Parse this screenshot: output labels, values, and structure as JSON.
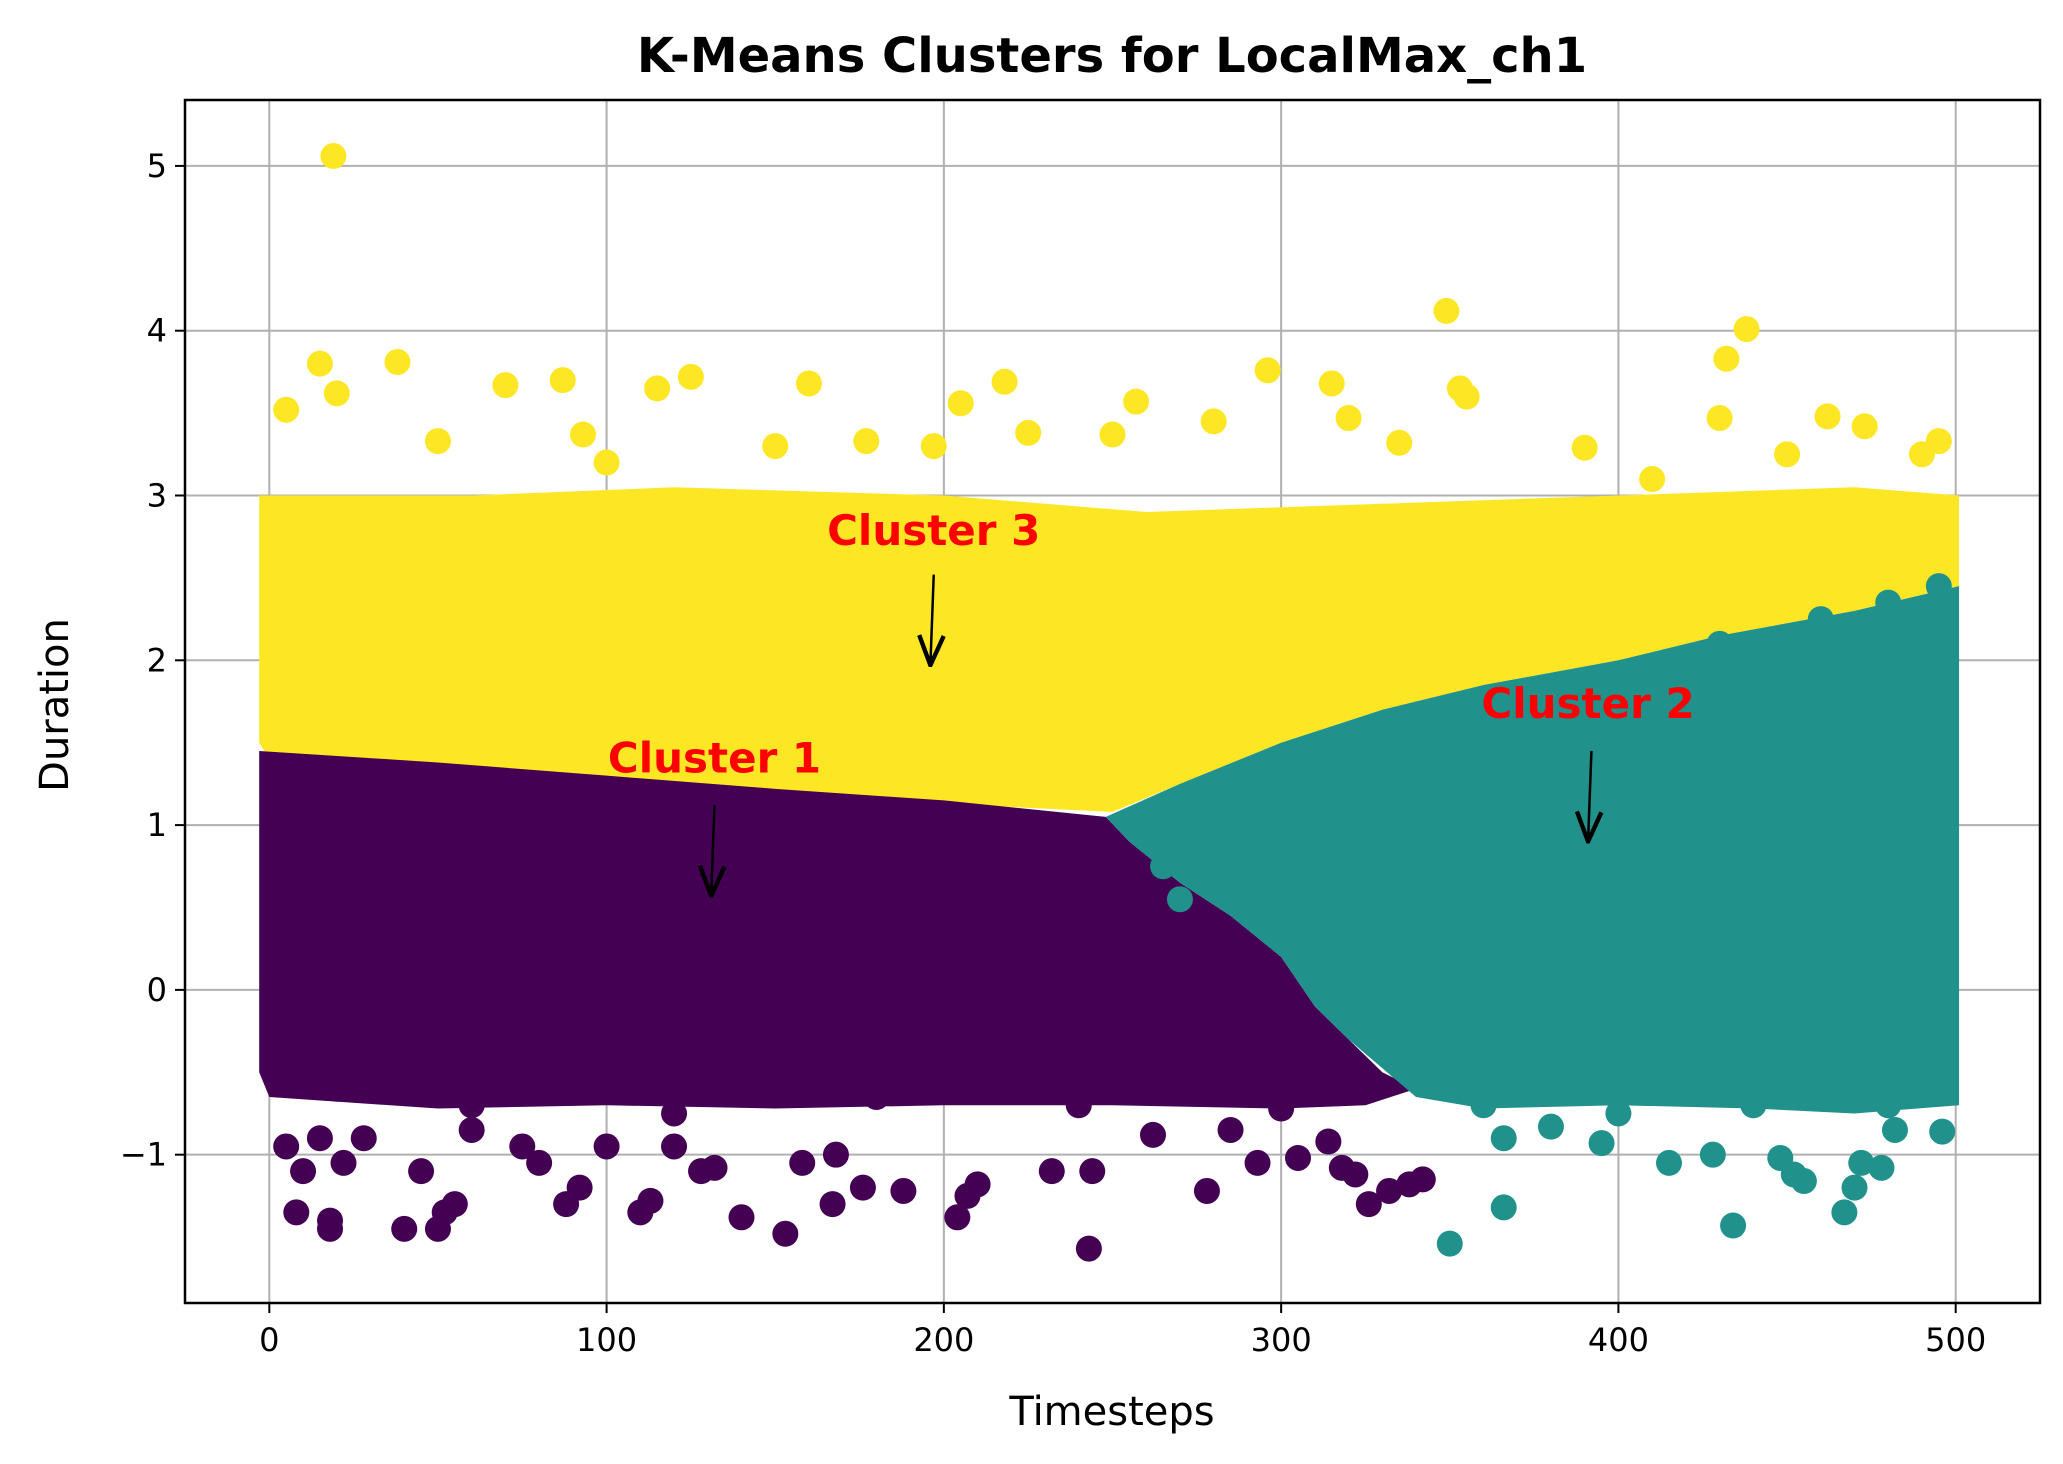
{
  "chart_data": {
    "type": "scatter",
    "title": "K-Means Clusters for LocalMax_ch1",
    "xlabel": "Timesteps",
    "ylabel": "Duration",
    "xlim": [
      -25,
      525
    ],
    "ylim": [
      -1.9,
      5.4
    ],
    "xticks": [
      0,
      100,
      200,
      300,
      400,
      500
    ],
    "xtick_labels": [
      "0",
      "100",
      "200",
      "300",
      "400",
      "500"
    ],
    "yticks": [
      -1,
      0,
      1,
      2,
      3,
      4,
      5
    ],
    "ytick_labels": [
      "−1",
      "0",
      "1",
      "2",
      "3",
      "4",
      "5"
    ],
    "grid": true,
    "colors": {
      "cluster_1": "#440154",
      "cluster_2": "#21918c",
      "cluster_3": "#fde725",
      "annotation": "#ff0000"
    },
    "series": [
      {
        "cluster": 1,
        "color": "#440154",
        "points": [
          [
            5,
            -0.95
          ],
          [
            8,
            -1.35
          ],
          [
            10,
            -1.1
          ],
          [
            15,
            -0.9
          ],
          [
            18,
            -1.45
          ],
          [
            18,
            -1.4
          ],
          [
            22,
            -1.05
          ],
          [
            28,
            -0.9
          ],
          [
            40,
            -1.45
          ],
          [
            45,
            -1.1
          ],
          [
            50,
            -1.45
          ],
          [
            52,
            -1.35
          ],
          [
            55,
            -1.3
          ],
          [
            60,
            -0.85
          ],
          [
            75,
            -0.95
          ],
          [
            80,
            -1.05
          ],
          [
            88,
            -1.3
          ],
          [
            92,
            -1.2
          ],
          [
            100,
            -0.95
          ],
          [
            110,
            -1.35
          ],
          [
            113,
            -1.28
          ],
          [
            120,
            -0.95
          ],
          [
            128,
            -1.1
          ],
          [
            132,
            -1.08
          ],
          [
            140,
            -1.38
          ],
          [
            153,
            -1.48
          ],
          [
            158,
            -1.05
          ],
          [
            167,
            -1.3
          ],
          [
            168,
            -1.0
          ],
          [
            176,
            -1.2
          ],
          [
            188,
            -1.22
          ],
          [
            204,
            -1.38
          ],
          [
            207,
            -1.25
          ],
          [
            210,
            -1.18
          ],
          [
            232,
            -1.1
          ],
          [
            243,
            -1.57
          ],
          [
            244,
            -1.1
          ],
          [
            262,
            -0.88
          ],
          [
            278,
            -1.22
          ],
          [
            285,
            -0.85
          ],
          [
            293,
            -1.05
          ],
          [
            305,
            -1.02
          ],
          [
            314,
            -0.92
          ],
          [
            318,
            -1.08
          ],
          [
            322,
            -1.12
          ],
          [
            326,
            -1.3
          ],
          [
            332,
            -1.22
          ],
          [
            338,
            -1.18
          ],
          [
            342,
            -1.15
          ],
          [
            20,
            -0.6
          ],
          [
            60,
            -0.7
          ],
          [
            120,
            -0.75
          ],
          [
            180,
            -0.65
          ],
          [
            240,
            -0.7
          ],
          [
            300,
            -0.72
          ]
        ]
      },
      {
        "cluster": 2,
        "color": "#21918c",
        "points": [
          [
            350,
            -1.54
          ],
          [
            366,
            -1.32
          ],
          [
            366,
            -0.9
          ],
          [
            380,
            -0.83
          ],
          [
            395,
            -0.93
          ],
          [
            415,
            -1.05
          ],
          [
            428,
            -1.0
          ],
          [
            434,
            -1.43
          ],
          [
            448,
            -1.02
          ],
          [
            452,
            -1.12
          ],
          [
            455,
            -1.16
          ],
          [
            467,
            -1.35
          ],
          [
            470,
            -1.2
          ],
          [
            472,
            -1.05
          ],
          [
            478,
            -1.08
          ],
          [
            482,
            -0.85
          ],
          [
            490,
            -0.6
          ],
          [
            496,
            -0.86
          ],
          [
            360,
            -0.7
          ],
          [
            400,
            -0.75
          ],
          [
            440,
            -0.7
          ],
          [
            480,
            -0.7
          ],
          [
            265,
            0.75
          ],
          [
            270,
            0.55
          ],
          [
            290,
            0.9
          ],
          [
            310,
            1.4
          ],
          [
            330,
            1.5
          ],
          [
            345,
            1.6
          ],
          [
            360,
            1.7
          ],
          [
            400,
            1.9
          ],
          [
            430,
            2.1
          ],
          [
            460,
            2.25
          ],
          [
            480,
            2.35
          ],
          [
            495,
            2.45
          ]
        ]
      },
      {
        "cluster": 3,
        "color": "#fde725",
        "points": [
          [
            19,
            5.06
          ],
          [
            15,
            3.8
          ],
          [
            20,
            3.62
          ],
          [
            38,
            3.81
          ],
          [
            70,
            3.67
          ],
          [
            87,
            3.7
          ],
          [
            93,
            3.37
          ],
          [
            115,
            3.65
          ],
          [
            125,
            3.72
          ],
          [
            160,
            3.68
          ],
          [
            177,
            3.33
          ],
          [
            197,
            3.3
          ],
          [
            205,
            3.56
          ],
          [
            218,
            3.69
          ],
          [
            225,
            3.38
          ],
          [
            257,
            3.57
          ],
          [
            280,
            3.45
          ],
          [
            296,
            3.76
          ],
          [
            315,
            3.68
          ],
          [
            335,
            3.32
          ],
          [
            349,
            4.12
          ],
          [
            353,
            3.65
          ],
          [
            355,
            3.6
          ],
          [
            430,
            3.47
          ],
          [
            432,
            3.83
          ],
          [
            438,
            4.01
          ],
          [
            462,
            3.48
          ],
          [
            473,
            3.42
          ],
          [
            495,
            3.33
          ],
          [
            5,
            3.52
          ],
          [
            50,
            3.33
          ],
          [
            100,
            3.2
          ],
          [
            150,
            3.3
          ],
          [
            250,
            3.37
          ],
          [
            320,
            3.47
          ],
          [
            390,
            3.29
          ],
          [
            410,
            3.1
          ],
          [
            450,
            3.25
          ],
          [
            490,
            3.25
          ]
        ]
      }
    ],
    "annotations": [
      {
        "text": "Cluster 1",
        "text_x": 132,
        "text_y": 1.32,
        "arrow_from": [
          132,
          1.12
        ],
        "arrow_to": [
          131,
          0.57
        ]
      },
      {
        "text": "Cluster 2",
        "text_x": 391,
        "text_y": 1.65,
        "arrow_from": [
          392,
          1.45
        ],
        "arrow_to": [
          391,
          0.9
        ]
      },
      {
        "text": "Cluster 3",
        "text_x": 197,
        "text_y": 2.7,
        "arrow_from": [
          197,
          2.52
        ],
        "arrow_to": [
          196,
          1.97
        ]
      }
    ]
  }
}
